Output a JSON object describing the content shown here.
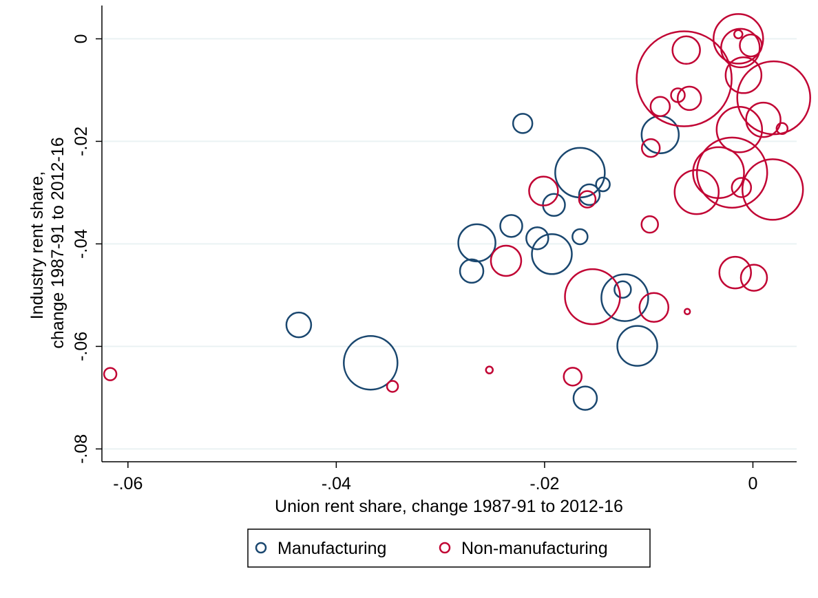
{
  "chart_data": {
    "type": "scatter",
    "xlabel": "Union rent share, change 1987-91 to 2012-16",
    "ylabel_lines": [
      "Industry rent share,",
      "change 1987-91 to 2012-16"
    ],
    "xlim": [
      -0.0625,
      0.0042
    ],
    "ylim": [
      -0.0825,
      0.0065
    ],
    "x_ticks": [
      {
        "value": -0.06,
        "label": "-.06"
      },
      {
        "value": -0.04,
        "label": "-.04"
      },
      {
        "value": -0.02,
        "label": "-.02"
      },
      {
        "value": 0,
        "label": "0"
      }
    ],
    "y_ticks": [
      {
        "value": 0,
        "label": "0"
      },
      {
        "value": -0.02,
        "label": "-.02"
      },
      {
        "value": -0.04,
        "label": "-.04"
      },
      {
        "value": -0.06,
        "label": "-.06"
      },
      {
        "value": -0.08,
        "label": "-.08"
      }
    ],
    "grid": true,
    "legend_position": "bottom",
    "series": [
      {
        "name": "Manufacturing",
        "color": "#1a476f",
        "points": [
          {
            "x": -0.0221,
            "y": -0.0165,
            "r": 14
          },
          {
            "x": -0.0089,
            "y": -0.0187,
            "r": 27
          },
          {
            "x": -0.0166,
            "y": -0.0261,
            "r": 36
          },
          {
            "x": -0.0144,
            "y": -0.0284,
            "r": 10
          },
          {
            "x": -0.0157,
            "y": -0.0304,
            "r": 15
          },
          {
            "x": -0.0191,
            "y": -0.0324,
            "r": 16
          },
          {
            "x": -0.0232,
            "y": -0.0365,
            "r": 16
          },
          {
            "x": -0.0207,
            "y": -0.0389,
            "r": 16
          },
          {
            "x": -0.0166,
            "y": -0.0386,
            "r": 11
          },
          {
            "x": -0.0265,
            "y": -0.0398,
            "r": 27
          },
          {
            "x": -0.0193,
            "y": -0.042,
            "r": 29
          },
          {
            "x": -0.027,
            "y": -0.0453,
            "r": 17
          },
          {
            "x": -0.0123,
            "y": -0.0505,
            "r": 34
          },
          {
            "x": -0.0125,
            "y": -0.0489,
            "r": 12
          },
          {
            "x": -0.0111,
            "y": -0.0599,
            "r": 29
          },
          {
            "x": -0.0436,
            "y": -0.0558,
            "r": 18
          },
          {
            "x": -0.0367,
            "y": -0.0632,
            "r": 39
          },
          {
            "x": -0.0161,
            "y": -0.0701,
            "r": 17
          }
        ]
      },
      {
        "name": "Non-manufacturing",
        "color": "#c10534",
        "points": [
          {
            "x": -0.0014,
            "y": 0.0,
            "r": 36
          },
          {
            "x": -0.0014,
            "y": 0.0009,
            "r": 6
          },
          {
            "x": -0.0012,
            "y": -0.0018,
            "r": 28
          },
          {
            "x": -0.0002,
            "y": -0.0013,
            "r": 16
          },
          {
            "x": -0.0064,
            "y": -0.0022,
            "r": 20
          },
          {
            "x": -0.0066,
            "y": -0.0078,
            "r": 69
          },
          {
            "x": -0.0009,
            "y": -0.0071,
            "r": 26
          },
          {
            "x": 0.002,
            "y": -0.0115,
            "r": 53
          },
          {
            "x": -0.0061,
            "y": -0.0116,
            "r": 17
          },
          {
            "x": -0.0072,
            "y": -0.011,
            "r": 10
          },
          {
            "x": -0.0089,
            "y": -0.0132,
            "r": 14
          },
          {
            "x": 0.001,
            "y": -0.0158,
            "r": 25
          },
          {
            "x": 0.0028,
            "y": -0.0175,
            "r": 8
          },
          {
            "x": -0.0013,
            "y": -0.0177,
            "r": 33
          },
          {
            "x": -0.0098,
            "y": -0.0213,
            "r": 13
          },
          {
            "x": -0.002,
            "y": -0.0261,
            "r": 51
          },
          {
            "x": -0.0033,
            "y": -0.0261,
            "r": 37
          },
          {
            "x": -0.0054,
            "y": -0.0299,
            "r": 32
          },
          {
            "x": -0.0011,
            "y": -0.029,
            "r": 14
          },
          {
            "x": 0.0019,
            "y": -0.0294,
            "r": 44
          },
          {
            "x": -0.0201,
            "y": -0.0297,
            "r": 21
          },
          {
            "x": -0.0159,
            "y": -0.0313,
            "r": 12
          },
          {
            "x": -0.0099,
            "y": -0.0362,
            "r": 12
          },
          {
            "x": -0.0237,
            "y": -0.0433,
            "r": 22
          },
          {
            "x": -0.0017,
            "y": -0.0456,
            "r": 23
          },
          {
            "x": 0.0001,
            "y": -0.0466,
            "r": 19
          },
          {
            "x": -0.0154,
            "y": -0.0503,
            "r": 40
          },
          {
            "x": -0.0095,
            "y": -0.0524,
            "r": 21
          },
          {
            "x": -0.0063,
            "y": -0.0532,
            "r": 4
          },
          {
            "x": -0.0617,
            "y": -0.0654,
            "r": 9
          },
          {
            "x": -0.0346,
            "y": -0.0678,
            "r": 8
          },
          {
            "x": -0.0253,
            "y": -0.0646,
            "r": 5
          },
          {
            "x": -0.0173,
            "y": -0.0659,
            "r": 13
          }
        ]
      }
    ]
  }
}
